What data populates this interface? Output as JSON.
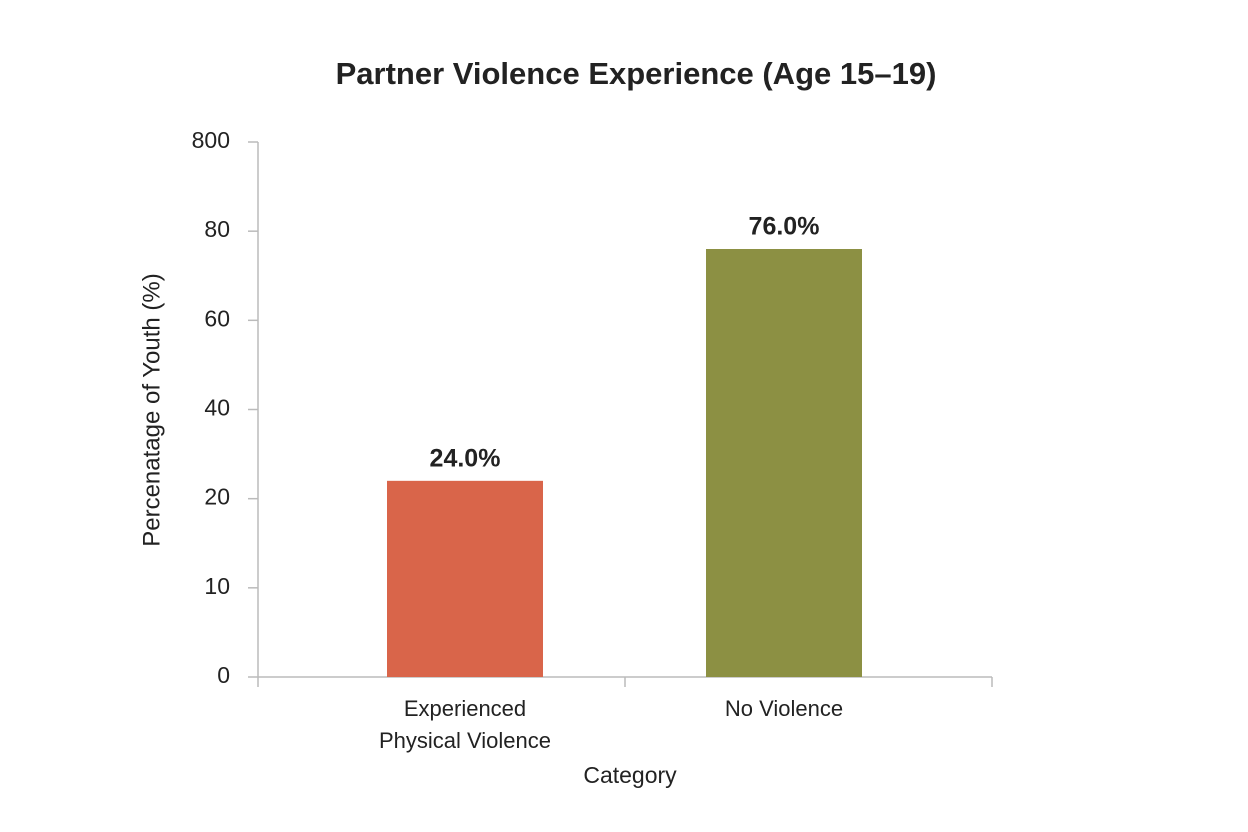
{
  "chart_data": {
    "type": "bar",
    "title": "Partner Violence Experience (Age 15–19)",
    "xlabel": "Category",
    "ylabel": "Percenatage of Youth (%)",
    "categories": [
      "Experienced Physical Violence",
      "No Violence"
    ],
    "values": [
      24,
      76
    ],
    "value_labels": [
      "24.0%",
      "76.0%"
    ],
    "colors": [
      "#d9654a",
      "#8c9043"
    ],
    "ylim": [
      0,
      800
    ],
    "yticks": [
      0,
      10,
      20,
      40,
      60,
      80,
      800
    ]
  }
}
